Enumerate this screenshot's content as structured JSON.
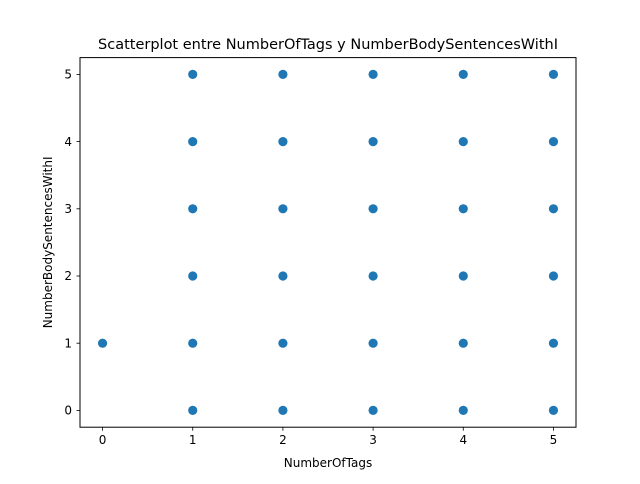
{
  "chart_data": {
    "type": "scatter",
    "title": "Scatterplot entre NumberOfTags y NumberBodySentencesWithI",
    "xlabel": "NumberOfTags",
    "ylabel": "NumberBodySentencesWithI",
    "xlim": [
      -0.25,
      5.25
    ],
    "ylim": [
      -0.25,
      5.25
    ],
    "xticks": [
      "0",
      "1",
      "2",
      "3",
      "4",
      "5"
    ],
    "yticks": [
      "0",
      "1",
      "2",
      "3",
      "4",
      "5"
    ],
    "grid": false,
    "marker_color": "#1f77b4",
    "points": [
      {
        "x": 0,
        "y": 1
      },
      {
        "x": 1,
        "y": 0
      },
      {
        "x": 1,
        "y": 1
      },
      {
        "x": 1,
        "y": 2
      },
      {
        "x": 1,
        "y": 3
      },
      {
        "x": 1,
        "y": 4
      },
      {
        "x": 1,
        "y": 5
      },
      {
        "x": 2,
        "y": 0
      },
      {
        "x": 2,
        "y": 1
      },
      {
        "x": 2,
        "y": 2
      },
      {
        "x": 2,
        "y": 3
      },
      {
        "x": 2,
        "y": 4
      },
      {
        "x": 2,
        "y": 5
      },
      {
        "x": 3,
        "y": 0
      },
      {
        "x": 3,
        "y": 1
      },
      {
        "x": 3,
        "y": 2
      },
      {
        "x": 3,
        "y": 3
      },
      {
        "x": 3,
        "y": 4
      },
      {
        "x": 3,
        "y": 5
      },
      {
        "x": 4,
        "y": 0
      },
      {
        "x": 4,
        "y": 1
      },
      {
        "x": 4,
        "y": 2
      },
      {
        "x": 4,
        "y": 3
      },
      {
        "x": 4,
        "y": 4
      },
      {
        "x": 4,
        "y": 5
      },
      {
        "x": 5,
        "y": 0
      },
      {
        "x": 5,
        "y": 1
      },
      {
        "x": 5,
        "y": 2
      },
      {
        "x": 5,
        "y": 3
      },
      {
        "x": 5,
        "y": 4
      },
      {
        "x": 5,
        "y": 5
      }
    ]
  }
}
